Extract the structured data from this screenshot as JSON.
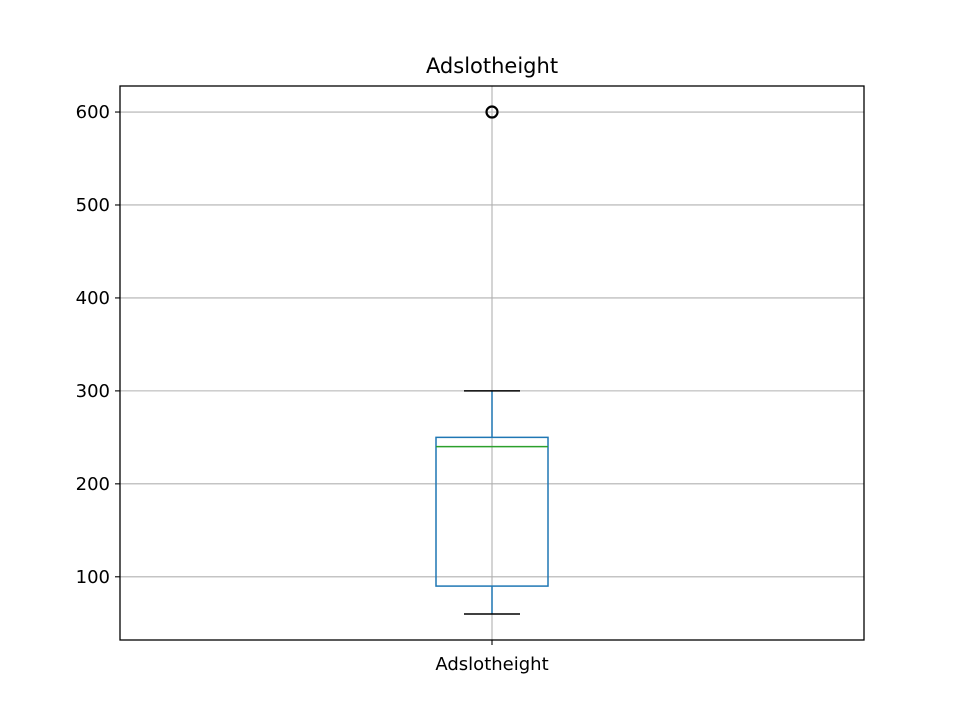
{
  "chart_data": {
    "type": "box",
    "title": "Adslotheight",
    "xlabel": "",
    "ylabel": "",
    "categories": [
      "Adslotheight"
    ],
    "boxes": [
      {
        "name": "Adslotheight",
        "whisker_low": 60,
        "q1": 90,
        "median": 240,
        "q3": 250,
        "whisker_high": 300,
        "outliers": [
          600
        ]
      }
    ],
    "ylim": [
      32,
      628
    ],
    "yticks": [
      100,
      200,
      300,
      400,
      500,
      600
    ],
    "grid": true,
    "legend": "none",
    "colors": {
      "box": "#1f77b4",
      "median": "#2ca02c",
      "whisker": "#1f77b4",
      "cap": "#000000",
      "flier": "#000000",
      "grid": "#b0b0b0",
      "axes": "#000000"
    }
  }
}
